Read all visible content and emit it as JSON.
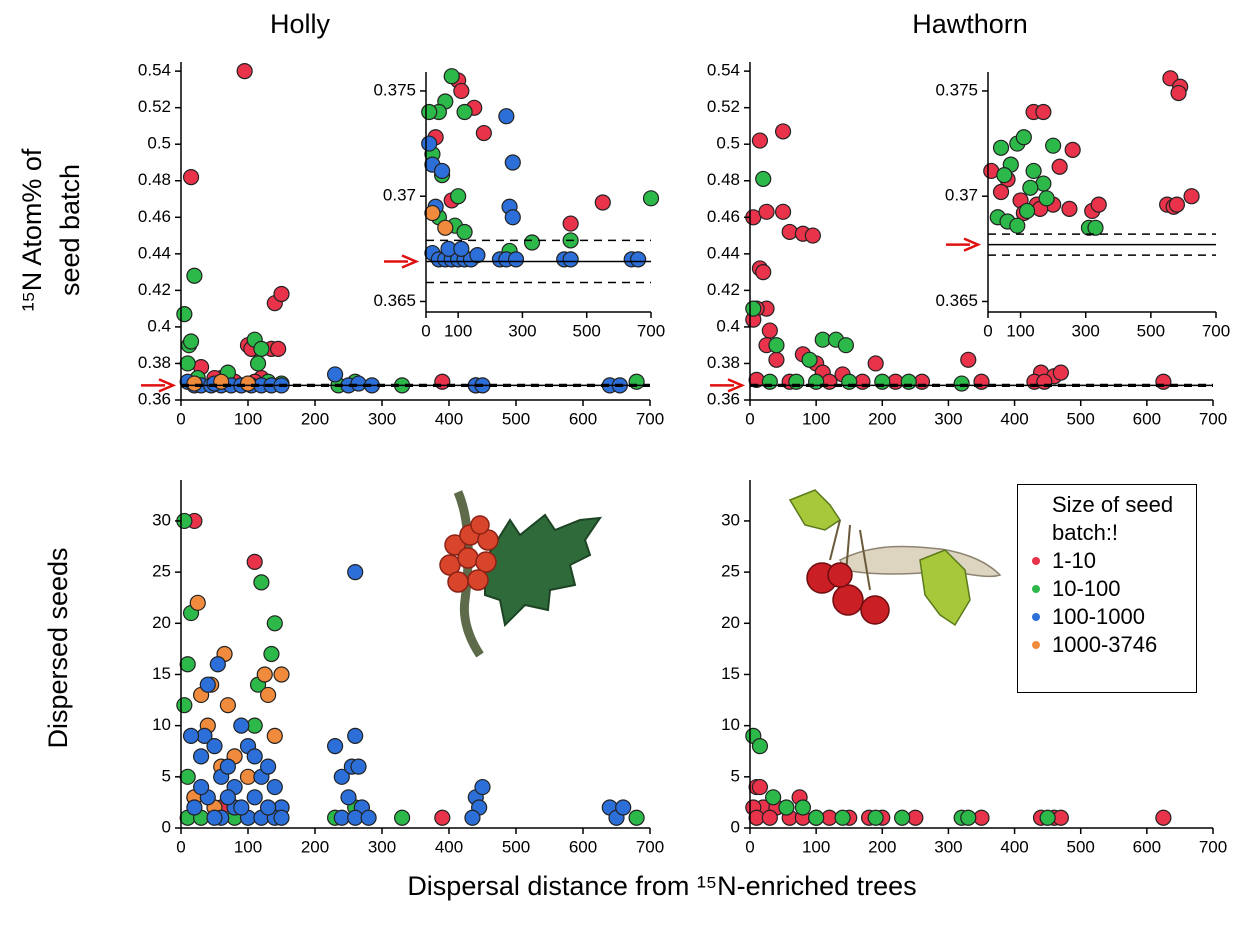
{
  "ylabel_top": [
    "¹⁵N Atom% of",
    "seed batch"
  ],
  "ylabel_bottom": "Dispersed seeds",
  "xlabel": "Dispersal distance from ¹⁵N-enriched trees",
  "legend": {
    "title": "Size of seed batch:!",
    "entries": [
      {
        "name": "1-10",
        "color": "#e8334a"
      },
      {
        "name": "10-100",
        "color": "#2db84a"
      },
      {
        "name": "100-1000",
        "color": "#2d6fd8"
      },
      {
        "name": "1000-3746",
        "color": "#f08a3c"
      }
    ]
  },
  "chart_data": [
    {
      "type": "scatter",
      "title": "Holly",
      "xlim": [
        0,
        700
      ],
      "ylim": [
        0.36,
        0.545
      ],
      "xticks": [
        0,
        100,
        200,
        300,
        400,
        500,
        600,
        700
      ],
      "yticks": [
        0.36,
        0.38,
        0.4,
        0.42,
        0.44,
        0.46,
        0.48,
        0.5,
        0.52,
        0.54
      ],
      "hlines": [
        {
          "value": 0.368,
          "style": "solid"
        },
        {
          "value": 0.3675,
          "style": "dashed"
        },
        {
          "value": 0.3685,
          "style": "dashed"
        }
      ],
      "series": [
        {
          "color": "#e8334a",
          "x": [
            95,
            15,
            140,
            150,
            100,
            105,
            135,
            145,
            30,
            60,
            80,
            120,
            390,
            110,
            50
          ],
          "values": [
            0.54,
            0.482,
            0.413,
            0.418,
            0.39,
            0.388,
            0.388,
            0.388,
            0.378,
            0.372,
            0.37,
            0.372,
            0.37,
            0.37,
            0.372
          ]
        },
        {
          "color": "#2db84a",
          "x": [
            5,
            20,
            12,
            15,
            10,
            110,
            120,
            115,
            25,
            130,
            235,
            330,
            680,
            440,
            260,
            70,
            150
          ],
          "values": [
            0.407,
            0.428,
            0.39,
            0.392,
            0.38,
            0.393,
            0.388,
            0.38,
            0.372,
            0.37,
            0.368,
            0.368,
            0.37,
            0.368,
            0.37,
            0.375,
            0.369
          ]
        },
        {
          "color": "#2d6fd8",
          "x": [
            10,
            20,
            30,
            45,
            60,
            75,
            90,
            105,
            120,
            135,
            150,
            230,
            250,
            265,
            285,
            440,
            450,
            640,
            655,
            50,
            100
          ],
          "values": [
            0.37,
            0.368,
            0.368,
            0.368,
            0.368,
            0.368,
            0.368,
            0.368,
            0.368,
            0.368,
            0.368,
            0.374,
            0.368,
            0.369,
            0.368,
            0.368,
            0.368,
            0.368,
            0.368,
            0.369,
            0.369
          ]
        },
        {
          "color": "#f08a3c",
          "x": [
            20,
            60,
            100
          ],
          "values": [
            0.369,
            0.37,
            0.369
          ]
        }
      ]
    },
    {
      "type": "scatter",
      "inset": true,
      "xlim": [
        0,
        700
      ],
      "ylim": [
        0.3645,
        0.3759
      ],
      "xticks": [
        0,
        100,
        300,
        500,
        700
      ],
      "yticks": [
        0.365,
        0.37,
        0.375
      ],
      "hlines": [
        {
          "value": 0.3669,
          "style": "solid"
        },
        {
          "value": 0.3679,
          "style": "dashed"
        },
        {
          "value": 0.3659,
          "style": "dashed"
        }
      ],
      "series": [
        {
          "color": "#e8334a",
          "x": [
            100,
            110,
            150,
            450,
            550,
            180,
            30,
            80
          ],
          "values": [
            0.3755,
            0.375,
            0.3742,
            0.3687,
            0.3697,
            0.373,
            0.3728,
            0.3698
          ]
        },
        {
          "color": "#2db84a",
          "x": [
            80,
            60,
            40,
            10,
            120,
            20,
            50,
            100,
            700,
            450,
            260,
            330,
            40,
            90,
            120
          ],
          "values": [
            0.3757,
            0.3745,
            0.374,
            0.374,
            0.374,
            0.372,
            0.371,
            0.37,
            0.3699,
            0.3679,
            0.3674,
            0.3678,
            0.369,
            0.3686,
            0.3683
          ]
        },
        {
          "color": "#2d6fd8",
          "x": [
            250,
            270,
            10,
            20,
            50,
            260,
            270,
            20,
            40,
            60,
            80,
            100,
            120,
            140,
            160,
            230,
            250,
            280,
            430,
            450,
            640,
            660,
            30,
            70,
            110
          ],
          "values": [
            0.3738,
            0.3716,
            0.3725,
            0.3715,
            0.3712,
            0.3695,
            0.369,
            0.3673,
            0.367,
            0.367,
            0.367,
            0.367,
            0.367,
            0.367,
            0.3672,
            0.367,
            0.367,
            0.367,
            0.367,
            0.367,
            0.367,
            0.367,
            0.3695,
            0.3675,
            0.3675
          ]
        },
        {
          "color": "#f08a3c",
          "x": [
            20,
            60
          ],
          "values": [
            0.3692,
            0.3685
          ]
        }
      ]
    },
    {
      "type": "scatter",
      "title": "Hawthorn",
      "xlim": [
        0,
        700
      ],
      "ylim": [
        0.36,
        0.545
      ],
      "xticks": [
        0,
        100,
        200,
        300,
        400,
        500,
        600,
        700
      ],
      "yticks": [
        0.36,
        0.38,
        0.4,
        0.42,
        0.44,
        0.46,
        0.48,
        0.5,
        0.52,
        0.54
      ],
      "hlines": [
        {
          "value": 0.368,
          "style": "solid"
        },
        {
          "value": 0.3675,
          "style": "dashed"
        },
        {
          "value": 0.3685,
          "style": "dashed"
        }
      ],
      "series": [
        {
          "color": "#e8334a",
          "x": [
            15,
            50,
            5,
            25,
            50,
            60,
            80,
            95,
            15,
            20,
            25,
            10,
            5,
            30,
            25,
            40,
            80,
            100,
            110,
            140,
            190,
            330,
            440,
            460,
            470,
            625,
            10,
            60,
            120,
            170,
            220,
            260,
            350,
            430,
            445
          ],
          "values": [
            0.502,
            0.507,
            0.46,
            0.463,
            0.463,
            0.452,
            0.451,
            0.45,
            0.432,
            0.43,
            0.41,
            0.41,
            0.404,
            0.398,
            0.39,
            0.382,
            0.385,
            0.38,
            0.375,
            0.374,
            0.38,
            0.382,
            0.375,
            0.373,
            0.375,
            0.37,
            0.371,
            0.37,
            0.37,
            0.37,
            0.37,
            0.37,
            0.37,
            0.37,
            0.37
          ]
        },
        {
          "color": "#2db84a",
          "x": [
            20,
            5,
            40,
            110,
            130,
            145,
            90,
            100,
            30,
            70,
            150,
            200,
            240,
            320
          ],
          "values": [
            0.481,
            0.41,
            0.39,
            0.393,
            0.393,
            0.39,
            0.382,
            0.37,
            0.37,
            0.37,
            0.37,
            0.37,
            0.37,
            0.369
          ]
        }
      ]
    },
    {
      "type": "scatter",
      "inset": true,
      "xlim": [
        0,
        700
      ],
      "ylim": [
        0.3645,
        0.3759
      ],
      "xticks": [
        0,
        100,
        300,
        500,
        700
      ],
      "yticks": [
        0.365,
        0.37,
        0.375
      ],
      "hlines": [
        {
          "value": 0.3677,
          "style": "solid"
        },
        {
          "value": 0.3682,
          "style": "dashed"
        },
        {
          "value": 0.3672,
          "style": "dashed"
        }
      ],
      "series": [
        {
          "color": "#e8334a",
          "x": [
            560,
            590,
            585,
            140,
            170,
            260,
            220,
            10,
            60,
            40,
            100,
            150,
            200,
            250,
            320,
            340,
            550,
            570,
            625,
            580,
            110,
            160
          ],
          "values": [
            0.3756,
            0.3752,
            0.3749,
            0.374,
            0.374,
            0.3722,
            0.3714,
            0.3712,
            0.3708,
            0.3702,
            0.3698,
            0.3696,
            0.3696,
            0.3694,
            0.3693,
            0.3696,
            0.3696,
            0.3695,
            0.37,
            0.3696,
            0.3692,
            0.3694
          ]
        },
        {
          "color": "#2db84a",
          "x": [
            40,
            90,
            110,
            200,
            70,
            50,
            140,
            170,
            130,
            30,
            60,
            90,
            120,
            310,
            330,
            180
          ],
          "values": [
            0.3723,
            0.3725,
            0.3728,
            0.3724,
            0.3715,
            0.371,
            0.3712,
            0.3706,
            0.3704,
            0.369,
            0.3688,
            0.3686,
            0.3693,
            0.3685,
            0.3685,
            0.3699
          ]
        }
      ]
    },
    {
      "type": "scatter",
      "xlim": [
        0,
        700
      ],
      "ylim": [
        0,
        34
      ],
      "xticks": [
        0,
        100,
        200,
        300,
        400,
        500,
        600,
        700
      ],
      "yticks": [
        0,
        5,
        10,
        15,
        20,
        25,
        30
      ],
      "series": [
        {
          "color": "#e8334a",
          "x": [
            20,
            110,
            390,
            150,
            60
          ],
          "values": [
            30,
            26,
            1,
            2,
            2
          ]
        },
        {
          "color": "#2db84a",
          "x": [
            5,
            10,
            5,
            15,
            120,
            140,
            135,
            110,
            115,
            10,
            10,
            20,
            230,
            330,
            680,
            260,
            30,
            80
          ],
          "values": [
            30,
            16,
            12,
            21,
            24,
            20,
            17,
            10,
            14,
            5,
            1,
            3,
            1,
            1,
            1,
            2,
            1,
            1
          ]
        },
        {
          "color": "#f08a3c",
          "x": [
            25,
            65,
            30,
            45,
            125,
            150,
            130,
            70,
            140,
            40,
            60,
            80,
            100,
            20,
            50
          ],
          "values": [
            22,
            17,
            13,
            14,
            15,
            15,
            13,
            12,
            9,
            10,
            6,
            7,
            5,
            3,
            2
          ]
        },
        {
          "color": "#2d6fd8",
          "x": [
            260,
            55,
            35,
            15,
            40,
            30,
            50,
            60,
            70,
            80,
            90,
            100,
            110,
            120,
            130,
            140,
            150,
            20,
            40,
            60,
            80,
            100,
            120,
            140,
            30,
            50,
            70,
            90,
            110,
            130,
            150,
            230,
            240,
            260,
            255,
            265,
            270,
            250,
            240,
            260,
            280,
            440,
            450,
            445,
            640,
            650,
            660,
            435
          ],
          "values": [
            25,
            16,
            9,
            9,
            14,
            7,
            8,
            5,
            6,
            4,
            10,
            8,
            7,
            5,
            6,
            4,
            2,
            2,
            3,
            1,
            2,
            1,
            1,
            1,
            4,
            1,
            3,
            2,
            3,
            2,
            1,
            8,
            5,
            9,
            6,
            6,
            2,
            3,
            1,
            1,
            1,
            3,
            4,
            2,
            2,
            1,
            2,
            1
          ]
        }
      ]
    },
    {
      "type": "scatter",
      "xlim": [
        0,
        700
      ],
      "ylim": [
        0,
        34
      ],
      "xticks": [
        0,
        100,
        200,
        300,
        400,
        500,
        600,
        700
      ],
      "yticks": [
        0,
        5,
        10,
        15,
        20,
        25,
        30
      ],
      "series": [
        {
          "color": "#e8334a",
          "x": [
            10,
            15,
            75,
            20,
            5,
            40,
            60,
            10,
            30,
            80,
            100,
            150,
            180,
            250,
            350,
            440,
            460,
            470,
            625,
            120,
            200
          ],
          "values": [
            4,
            4,
            3,
            2,
            2,
            2,
            1,
            1,
            1,
            1,
            1,
            1,
            1,
            1,
            1,
            1,
            1,
            1,
            1,
            1,
            1
          ]
        },
        {
          "color": "#2db84a",
          "x": [
            5,
            15,
            35,
            55,
            80,
            100,
            140,
            190,
            230,
            320,
            330,
            450
          ],
          "values": [
            9,
            8,
            3,
            2,
            2,
            1,
            1,
            1,
            1,
            1,
            1,
            1
          ]
        }
      ]
    }
  ]
}
